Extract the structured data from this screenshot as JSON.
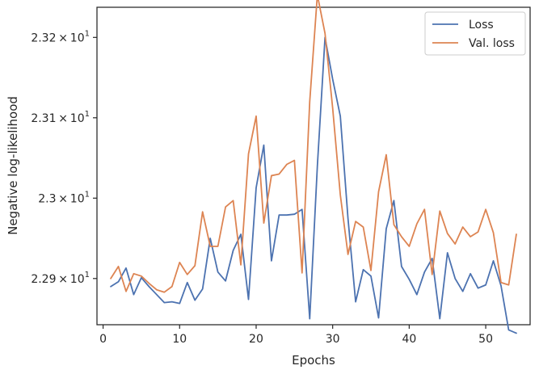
{
  "chart_data": {
    "type": "line",
    "title": "",
    "xlabel": "Epochs",
    "ylabel": "Negative log-likelihood",
    "xlim": [
      -0.8,
      55.8
    ],
    "ylim": [
      22.8425,
      23.2375
    ],
    "xticks": [
      0,
      10,
      20,
      30,
      40,
      50
    ],
    "xtick_labels": [
      "0",
      "10",
      "20",
      "30",
      "40",
      "50"
    ],
    "yticks": [
      22.9,
      23.0,
      23.1,
      23.2
    ],
    "ytick_labels": [
      {
        "mant": "2.29",
        "exp": "1"
      },
      {
        "mant": "2.3",
        "exp": "1"
      },
      {
        "mant": "2.31",
        "exp": "1"
      },
      {
        "mant": "2.32",
        "exp": "1"
      }
    ],
    "grid": false,
    "legend_position": "upper right",
    "x": [
      1,
      2,
      3,
      4,
      5,
      6,
      7,
      8,
      9,
      10,
      11,
      12,
      13,
      14,
      15,
      16,
      17,
      18,
      19,
      20,
      21,
      22,
      23,
      24,
      25,
      26,
      27,
      28,
      29,
      30,
      31,
      32,
      33,
      34,
      35,
      36,
      37,
      38,
      39,
      40,
      41,
      42,
      43,
      44,
      45,
      46,
      47,
      48,
      49,
      50,
      51,
      52,
      53,
      54
    ],
    "series": [
      {
        "name": "Loss",
        "color": "#4c72b0",
        "values": [
          22.89,
          22.896,
          22.913,
          22.88,
          22.901,
          22.89,
          22.88,
          22.87,
          22.871,
          22.869,
          22.895,
          22.873,
          22.887,
          22.95,
          22.908,
          22.897,
          22.935,
          22.955,
          22.874,
          23.013,
          23.066,
          22.922,
          22.979,
          22.979,
          22.98,
          22.986,
          22.85,
          23.04,
          23.2,
          23.148,
          23.102,
          22.975,
          22.871,
          22.911,
          22.903,
          22.851,
          22.962,
          22.997,
          22.915,
          22.899,
          22.88,
          22.908,
          22.925,
          22.85,
          22.932,
          22.9,
          22.884,
          22.906,
          22.888,
          22.892,
          22.922,
          22.891,
          22.836,
          22.832
        ]
      },
      {
        "name": "Val. loss",
        "color": "#dd8452",
        "values": [
          22.9,
          22.915,
          22.884,
          22.906,
          22.903,
          22.894,
          22.886,
          22.883,
          22.89,
          22.92,
          22.905,
          22.916,
          22.983,
          22.94,
          22.94,
          22.989,
          22.997,
          22.917,
          23.055,
          23.102,
          22.969,
          23.028,
          23.03,
          23.042,
          23.047,
          22.907,
          23.12,
          23.253,
          23.205,
          23.112,
          23.004,
          22.93,
          22.971,
          22.964,
          22.91,
          23.008,
          23.054,
          22.967,
          22.952,
          22.94,
          22.968,
          22.986,
          22.905,
          22.984,
          22.956,
          22.943,
          22.964,
          22.952,
          22.958,
          22.986,
          22.957,
          22.895,
          22.892,
          22.955
        ]
      }
    ]
  }
}
